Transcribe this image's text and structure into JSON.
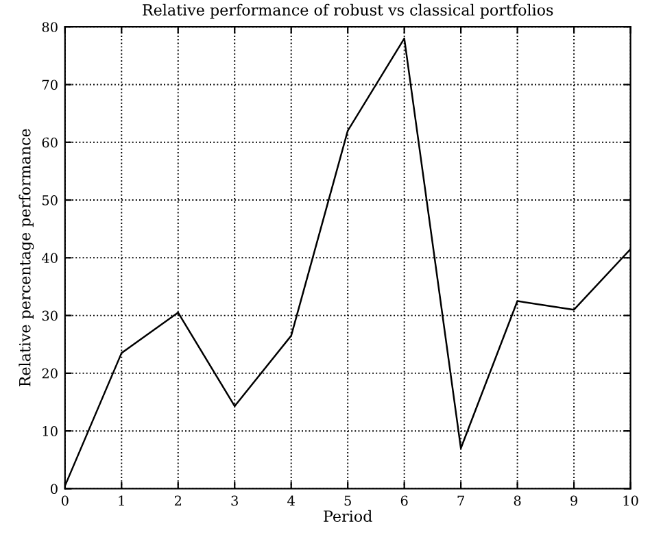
{
  "chart_data": {
    "type": "line",
    "title": "Relative performance of robust vs classical portfolios",
    "xlabel": "Period",
    "ylabel": "Relative percentage performance",
    "x": [
      0,
      1,
      2,
      3,
      4,
      5,
      6,
      7,
      8,
      9,
      10
    ],
    "series": [
      {
        "color": "#000000",
        "values": [
          0.5,
          23.5,
          30.5,
          14.3,
          26.5,
          62,
          78,
          7,
          32.5,
          31,
          41.5
        ]
      }
    ],
    "xlim": [
      0,
      10
    ],
    "ylim": [
      0,
      80
    ],
    "xticks": [
      0,
      1,
      2,
      3,
      4,
      5,
      6,
      7,
      8,
      9,
      10
    ],
    "yticks": [
      0,
      10,
      20,
      30,
      40,
      50,
      60,
      70,
      80
    ],
    "grid": true,
    "line_style": "solid",
    "marker": "none",
    "legend": false
  }
}
